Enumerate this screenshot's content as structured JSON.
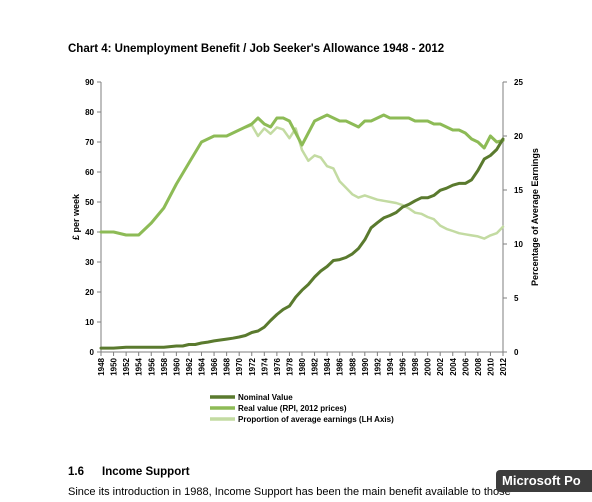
{
  "chart_data": {
    "type": "line",
    "title": "Chart 4: Unemployment Benefit / Job Seeker's Allowance 1948 - 2012",
    "ylabel": "£ per week",
    "y2label": "Percentage of Average Earnings",
    "ylim": [
      0,
      90
    ],
    "y2lim": [
      0,
      25
    ],
    "yticks": [
      "0",
      "10",
      "20",
      "30",
      "40",
      "50",
      "60",
      "70",
      "80",
      "90"
    ],
    "y2ticks": [
      "0",
      "5",
      "10",
      "15",
      "20",
      "25"
    ],
    "xticks": [
      "1948",
      "1950",
      "1952",
      "1954",
      "1956",
      "1958",
      "1960",
      "1962",
      "1964",
      "1966",
      "1968",
      "1970",
      "1972",
      "1974",
      "1976",
      "1978",
      "1980",
      "1982",
      "1984",
      "1986",
      "1988",
      "1990",
      "1992",
      "1994",
      "1996",
      "1998",
      "2000",
      "2002",
      "2004",
      "2006",
      "2008",
      "2010",
      "2012"
    ],
    "grid": false,
    "legend_position": "bottom",
    "series": [
      {
        "name": "Nominal Value",
        "color": "#5a7a2e",
        "axis": "left",
        "x": [
          1948,
          1950,
          1952,
          1953,
          1956,
          1958,
          1960,
          1961,
          1962,
          1963,
          1964,
          1965,
          1966,
          1967,
          1968,
          1969,
          1970,
          1971,
          1972,
          1973,
          1974,
          1975,
          1976,
          1977,
          1978,
          1979,
          1980,
          1981,
          1982,
          1983,
          1984,
          1985,
          1986,
          1987,
          1988,
          1989,
          1990,
          1991,
          1992,
          1993,
          1994,
          1995,
          1996,
          1997,
          1998,
          1999,
          2000,
          2001,
          2002,
          2003,
          2004,
          2005,
          2006,
          2007,
          2008,
          2009,
          2010,
          2011,
          2012
        ],
        "values": [
          1.3,
          1.3,
          1.6,
          1.6,
          1.6,
          1.6,
          2.0,
          2.0,
          2.5,
          2.5,
          3.0,
          3.3,
          3.7,
          4.0,
          4.3,
          4.6,
          5.0,
          5.5,
          6.5,
          7.0,
          8.3,
          10.5,
          12.5,
          14.2,
          15.3,
          18.3,
          20.6,
          22.5,
          25.0,
          27.0,
          28.5,
          30.5,
          30.8,
          31.5,
          32.7,
          34.5,
          37.4,
          41.4,
          43.1,
          44.7,
          45.5,
          46.5,
          48.3,
          49.2,
          50.4,
          51.4,
          51.4,
          52.2,
          53.9,
          54.6,
          55.6,
          56.2,
          56.2,
          57.4,
          60.5,
          64.3,
          65.5,
          67.5,
          71.0
        ]
      },
      {
        "name": "Real value (RPI, 2012 prices)",
        "color": "#8dbb56",
        "axis": "left",
        "x": [
          1948,
          1950,
          1952,
          1954,
          1956,
          1958,
          1960,
          1962,
          1964,
          1966,
          1968,
          1970,
          1972,
          1973,
          1974,
          1975,
          1976,
          1977,
          1978,
          1979,
          1980,
          1981,
          1982,
          1983,
          1984,
          1985,
          1986,
          1987,
          1988,
          1989,
          1990,
          1991,
          1992,
          1993,
          1994,
          1995,
          1996,
          1997,
          1998,
          1999,
          2000,
          2001,
          2002,
          2003,
          2004,
          2005,
          2006,
          2007,
          2008,
          2009,
          2010,
          2011,
          2012
        ],
        "values": [
          40,
          40,
          39,
          39,
          43,
          48,
          56,
          63,
          70,
          72,
          72,
          74,
          76,
          78,
          76,
          75,
          78,
          78,
          77,
          73,
          69,
          73,
          77,
          78,
          79,
          78,
          77,
          77,
          76,
          75,
          77,
          77,
          78,
          79,
          78,
          78,
          78,
          78,
          77,
          77,
          77,
          76,
          76,
          75,
          74,
          74,
          73,
          71,
          70,
          68,
          72,
          70,
          70.5
        ]
      },
      {
        "name": "Proportion of average earnings (LH Axis)",
        "color": "#c3dba2",
        "axis": "right",
        "x": [
          1971,
          1972,
          1973,
          1974,
          1975,
          1976,
          1977,
          1978,
          1979,
          1980,
          1981,
          1982,
          1983,
          1984,
          1985,
          1986,
          1987,
          1988,
          1989,
          1990,
          1991,
          1992,
          1993,
          1994,
          1995,
          1996,
          1997,
          1998,
          1999,
          2000,
          2001,
          2002,
          2003,
          2004,
          2005,
          2006,
          2007,
          2008,
          2009,
          2010,
          2011,
          2012
        ],
        "values": [
          20.8,
          21.0,
          20.0,
          20.7,
          20.2,
          20.8,
          20.6,
          19.8,
          20.7,
          18.7,
          17.7,
          18.2,
          18.0,
          17.2,
          17.0,
          15.8,
          15.2,
          14.6,
          14.3,
          14.5,
          14.3,
          14.1,
          14.0,
          13.9,
          13.8,
          13.6,
          13.3,
          12.9,
          12.8,
          12.5,
          12.3,
          11.7,
          11.4,
          11.2,
          11.0,
          10.9,
          10.8,
          10.7,
          10.5,
          10.8,
          11.0,
          11.6
        ]
      }
    ]
  },
  "section": {
    "number": "1.6",
    "title": "Income Support"
  },
  "body_text": "Since its introduction in 1988, Income Support has been the main benefit available to those",
  "tooltip": "Microsoft Po"
}
